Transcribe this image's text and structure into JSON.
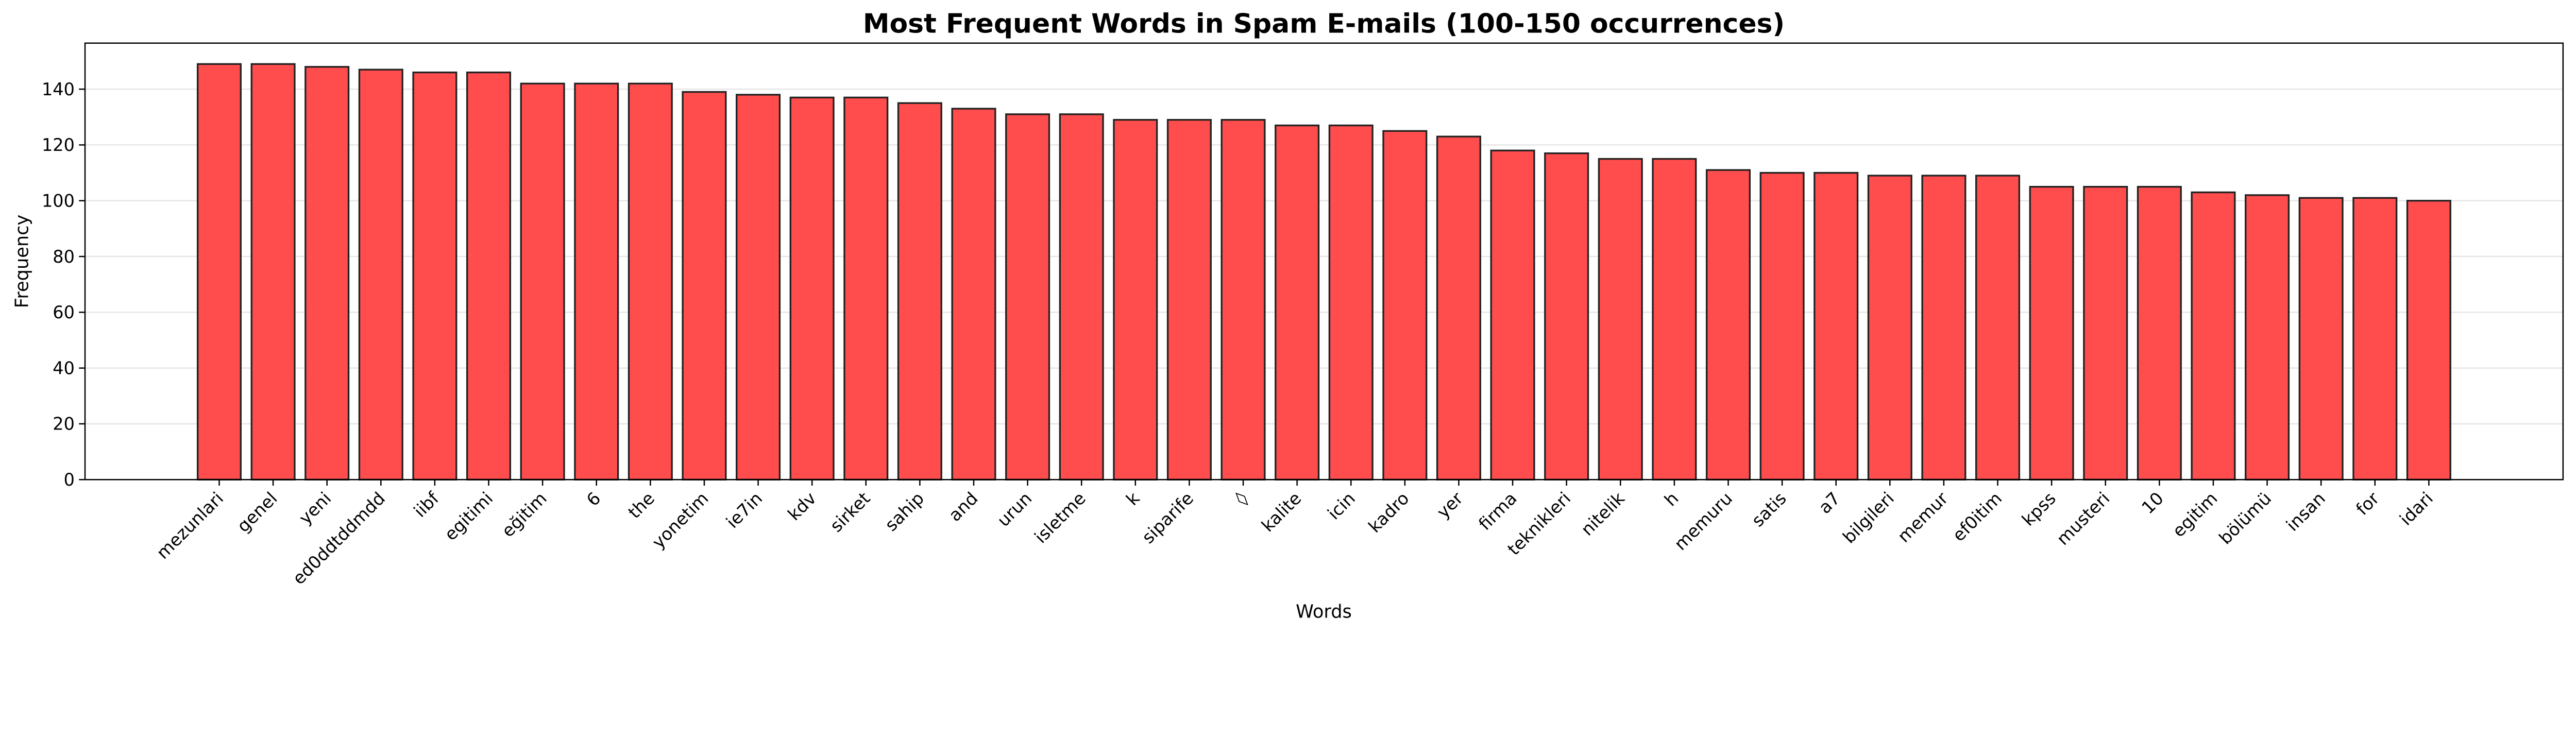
{
  "chart_data": {
    "type": "bar",
    "title": "Most Frequent Words in Spam E-mails (100-150 occurrences)",
    "xlabel": "Words",
    "ylabel": "Frequency",
    "ylim": [
      0,
      156.5
    ],
    "yticks": [
      0,
      20,
      40,
      60,
      80,
      100,
      120,
      140
    ],
    "grid": "y",
    "bar_color": "#ff4d4d",
    "edge_color": "#222222",
    "categories": [
      "mezunlari",
      "genel",
      "yeni",
      "ed0ddtddmdd",
      "iibf",
      "egitimi",
      "eğitim",
      "6",
      "the",
      "yonetim",
      "ie7in",
      "kdv",
      "sirket",
      "sahip",
      "and",
      "urun",
      "isletme",
      "k",
      "siparife",
      "◊",
      "kalite",
      "icin",
      "kadro",
      "yer",
      "firma",
      "teknikleri",
      "nitelik",
      "h",
      "memuru",
      "satis",
      "a7",
      "bilgileri",
      "memur",
      "ef0itim",
      "kpss",
      "musteri",
      "10",
      "egitim",
      "bölümü",
      "insan",
      "for",
      "idari"
    ],
    "values": [
      149,
      149,
      148,
      147,
      146,
      146,
      142,
      142,
      142,
      139,
      138,
      137,
      137,
      135,
      133,
      131,
      131,
      129,
      129,
      129,
      127,
      127,
      125,
      123,
      118,
      117,
      115,
      115,
      111,
      110,
      110,
      109,
      109,
      109,
      105,
      105,
      105,
      103,
      102,
      101,
      101,
      100
    ]
  }
}
